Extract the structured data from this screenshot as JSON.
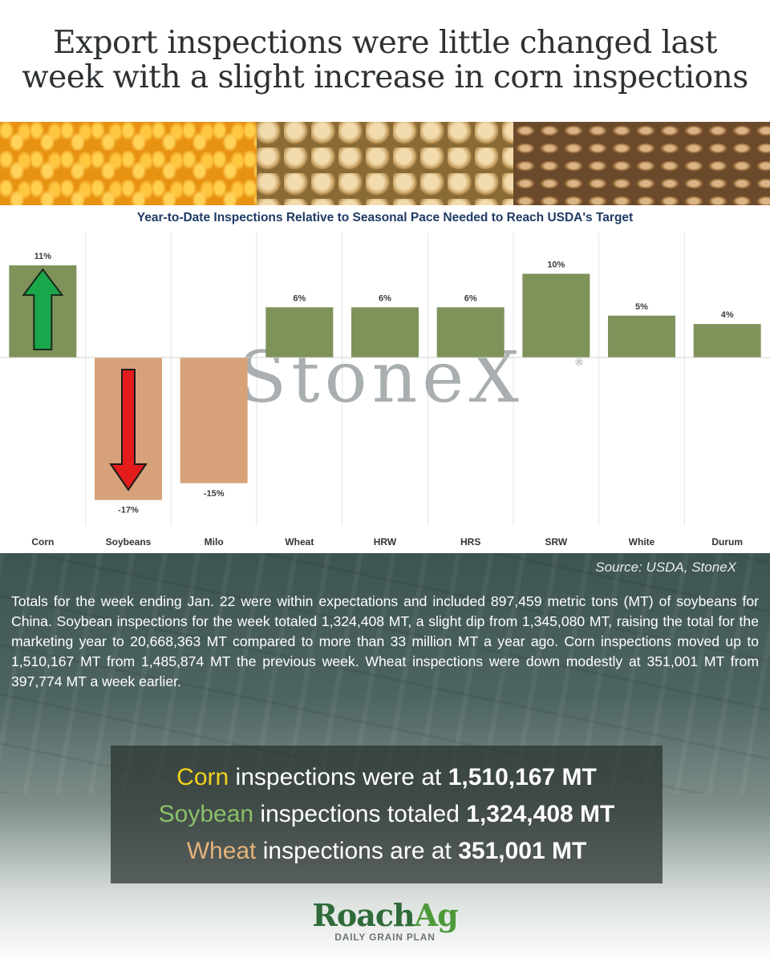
{
  "headline": "Export inspections were little changed last week with a slight increase in corn inspections",
  "source": "Source: USDA, StoneX",
  "watermark": "StoneX",
  "watermark_mark": "®",
  "body_text": "Totals for the week ending Jan. 22 were within expectations and included 897,459 metric tons (MT) of soybeans for China. Soybean inspections for the week totaled 1,324,408 MT, a slight dip from 1,345,080 MT, raising the total for the marketing year to 20,668,363 MT compared to more than 33 million MT a year ago. Corn inspections moved up to 1,510,167 MT from 1,485,874 MT the previous week. Wheat inspections were down modestly at 351,001 MT from 397,774 MT a week earlier.",
  "stats": {
    "corn": {
      "label": "Corn",
      "text": " inspections were at ",
      "value": "1,510,167 MT"
    },
    "soy": {
      "label": "Soybean",
      "text": " inspections totaled ",
      "value": "1,324,408 MT"
    },
    "wheat": {
      "label": "Wheat",
      "text": " inspections are at ",
      "value": "351,001 MT"
    }
  },
  "logo": {
    "roach": "Roach",
    "ag": "Ag",
    "tagline": "DAILY GRAIN PLAN"
  },
  "colors": {
    "positive_bar": "#7e925a",
    "negative_bar": "#d7a27a",
    "up_arrow": "#1aa64a",
    "down_arrow": "#e31b1b"
  },
  "chart_data": {
    "type": "bar",
    "title": "Year-to-Date Inspections Relative to Seasonal Pace Needed to Reach USDA's Target",
    "categories": [
      "Corn",
      "Soybeans",
      "Milo",
      "Wheat",
      "HRW",
      "HRS",
      "SRW",
      "White",
      "Durum"
    ],
    "values": [
      11,
      -17,
      -15,
      6,
      6,
      6,
      10,
      5,
      4
    ],
    "data_labels": [
      "11%",
      "-17%",
      "-15%",
      "6%",
      "6%",
      "6%",
      "10%",
      "5%",
      "4%"
    ],
    "ylim": [
      -17,
      15
    ],
    "grid": "vertical separators",
    "arrows": [
      {
        "category": "Corn",
        "direction": "up"
      },
      {
        "category": "Soybeans",
        "direction": "down"
      }
    ]
  }
}
